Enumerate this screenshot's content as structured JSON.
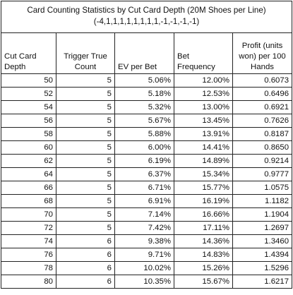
{
  "title": {
    "line1": "Card Counting Statistics by Cut Card Depth (20M Shoes per Line)",
    "line2": "(-4,1,1,1,1,1,1,1,1,-1,-1,-1,-1)"
  },
  "headers": [
    "Cut Card Depth",
    "Trigger True Count",
    "EV per Bet",
    "Bet Frequency",
    "Profit (units won) per 100 Hands"
  ],
  "rows": [
    [
      "50",
      "5",
      "5.06%",
      "12.00%",
      "0.6073"
    ],
    [
      "52",
      "5",
      "5.18%",
      "12.53%",
      "0.6496"
    ],
    [
      "54",
      "5",
      "5.32%",
      "13.00%",
      "0.6921"
    ],
    [
      "56",
      "5",
      "5.67%",
      "13.45%",
      "0.7626"
    ],
    [
      "58",
      "5",
      "5.88%",
      "13.91%",
      "0.8187"
    ],
    [
      "60",
      "5",
      "6.00%",
      "14.41%",
      "0.8650"
    ],
    [
      "62",
      "5",
      "6.19%",
      "14.89%",
      "0.9214"
    ],
    [
      "64",
      "5",
      "6.37%",
      "15.34%",
      "0.9777"
    ],
    [
      "66",
      "5",
      "6.71%",
      "15.77%",
      "1.0575"
    ],
    [
      "68",
      "5",
      "6.91%",
      "16.19%",
      "1.1182"
    ],
    [
      "70",
      "5",
      "7.14%",
      "16.66%",
      "1.1904"
    ],
    [
      "72",
      "5",
      "7.42%",
      "17.11%",
      "1.2697"
    ],
    [
      "74",
      "6",
      "9.38%",
      "14.36%",
      "1.3460"
    ],
    [
      "76",
      "6",
      "9.71%",
      "14.83%",
      "1.4394"
    ],
    [
      "78",
      "6",
      "10.02%",
      "15.26%",
      "1.5296"
    ],
    [
      "80",
      "6",
      "10.35%",
      "15.67%",
      "1.6217"
    ]
  ]
}
